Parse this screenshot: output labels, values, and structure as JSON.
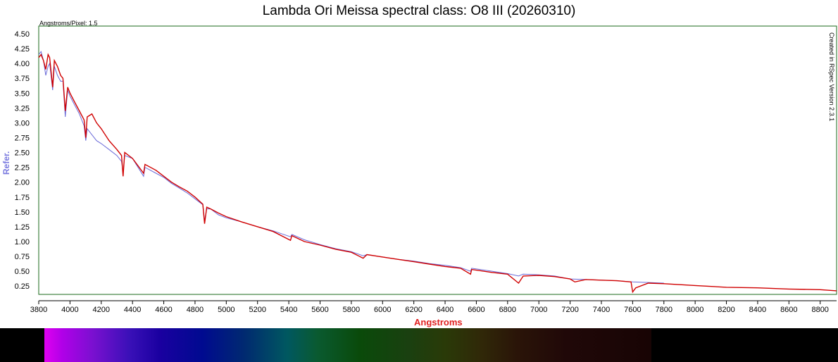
{
  "title": "Lambda Ori Meissa spectral class: O8 III (20260310)",
  "annotations": {
    "dispersion": "Angstroms/Pixel: 1.5",
    "software": "Created in RSpec Version 2.3.1"
  },
  "chart_data": {
    "type": "line",
    "title": "Lambda Ori Meissa spectral class: O8 III (20260310)",
    "xlabel": "Angstroms",
    "ylabel": "Refer.",
    "xlim": [
      3800,
      8905
    ],
    "ylim": [
      0.11,
      4.63
    ],
    "xticks": [
      3800,
      4000,
      4200,
      4400,
      4600,
      4800,
      5000,
      5200,
      5400,
      5600,
      5800,
      6000,
      6200,
      6400,
      6600,
      6800,
      7000,
      7200,
      7400,
      7600,
      7800,
      8000,
      8200,
      8400,
      8600,
      8800
    ],
    "yticks": [
      "0.25",
      "0.50",
      "0.75",
      "1.00",
      "1.25",
      "1.50",
      "1.75",
      "2.00",
      "2.25",
      "2.50",
      "2.75",
      "3.00",
      "3.25",
      "3.50",
      "3.75",
      "4.00",
      "4.25",
      "4.50"
    ],
    "grid": false,
    "colors": {
      "frame": "#1a6a1a",
      "reference": "#6a6ad8",
      "observed": "#d00000",
      "xlabel": "#e02020",
      "ylabel": "#7a7adf"
    },
    "series": [
      {
        "name": "reference",
        "color": "#6a6ad8",
        "x": [
          3800,
          3815,
          3830,
          3845,
          3860,
          3870,
          3889,
          3900,
          3920,
          3940,
          3955,
          3970,
          3985,
          4000,
          4030,
          4060,
          4090,
          4101,
          4110,
          4140,
          4170,
          4200,
          4250,
          4300,
          4330,
          4340,
          4350,
          4400,
          4471,
          4480,
          4550,
          4600,
          4650,
          4700,
          4750,
          4800,
          4850,
          4861,
          4875,
          4900,
          4950,
          5000,
          5100,
          5200,
          5300,
          5411,
          5420,
          5500,
          5600,
          5700,
          5800,
          5876,
          5900,
          6000,
          6100,
          6200,
          6300,
          6400,
          6500,
          6563,
          6570,
          6700,
          6800,
          6870,
          6900,
          7000,
          7100,
          7200,
          7300,
          7400,
          7500,
          7600,
          7700,
          7800
        ],
        "y": [
          4.15,
          4.2,
          4.05,
          3.8,
          3.95,
          4.0,
          3.55,
          3.95,
          3.8,
          3.7,
          3.7,
          3.1,
          3.55,
          3.45,
          3.3,
          3.15,
          2.95,
          2.7,
          2.9,
          2.8,
          2.7,
          2.65,
          2.55,
          2.45,
          2.35,
          2.15,
          2.45,
          2.4,
          2.1,
          2.25,
          2.15,
          2.08,
          1.98,
          1.9,
          1.82,
          1.72,
          1.62,
          1.35,
          1.55,
          1.55,
          1.45,
          1.4,
          1.33,
          1.25,
          1.18,
          1.08,
          1.12,
          1.03,
          0.95,
          0.88,
          0.83,
          0.76,
          0.78,
          0.74,
          0.7,
          0.67,
          0.63,
          0.6,
          0.56,
          0.5,
          0.55,
          0.5,
          0.46,
          0.42,
          0.45,
          0.44,
          0.42,
          0.37,
          0.36,
          0.35,
          0.34,
          0.32,
          0.31,
          0.3
        ]
      },
      {
        "name": "observed",
        "color": "#d00000",
        "x": [
          3800,
          3815,
          3830,
          3845,
          3860,
          3870,
          3889,
          3900,
          3920,
          3940,
          3955,
          3970,
          3985,
          4000,
          4030,
          4060,
          4090,
          4101,
          4110,
          4140,
          4170,
          4200,
          4250,
          4300,
          4330,
          4340,
          4350,
          4400,
          4471,
          4480,
          4550,
          4600,
          4650,
          4700,
          4750,
          4800,
          4850,
          4861,
          4875,
          4900,
          4950,
          5000,
          5100,
          5200,
          5300,
          5411,
          5420,
          5500,
          5600,
          5700,
          5800,
          5876,
          5900,
          6000,
          6100,
          6200,
          6300,
          6400,
          6500,
          6563,
          6570,
          6700,
          6800,
          6870,
          6900,
          7000,
          7100,
          7200,
          7230,
          7300,
          7400,
          7500,
          7590,
          7600,
          7620,
          7700,
          7800,
          8000,
          8200,
          8400,
          8600,
          8800,
          8905
        ],
        "y": [
          4.1,
          4.15,
          4.05,
          3.9,
          4.15,
          4.1,
          3.6,
          4.05,
          3.95,
          3.8,
          3.75,
          3.2,
          3.6,
          3.5,
          3.35,
          3.2,
          3.05,
          2.75,
          3.1,
          3.15,
          3.0,
          2.9,
          2.7,
          2.55,
          2.45,
          2.1,
          2.5,
          2.4,
          2.15,
          2.3,
          2.2,
          2.1,
          2.0,
          1.92,
          1.85,
          1.75,
          1.63,
          1.3,
          1.58,
          1.55,
          1.48,
          1.42,
          1.33,
          1.25,
          1.17,
          1.02,
          1.1,
          1.0,
          0.94,
          0.87,
          0.82,
          0.72,
          0.78,
          0.74,
          0.7,
          0.66,
          0.62,
          0.58,
          0.55,
          0.45,
          0.53,
          0.48,
          0.45,
          0.3,
          0.42,
          0.43,
          0.41,
          0.37,
          0.32,
          0.36,
          0.35,
          0.34,
          0.32,
          0.15,
          0.22,
          0.3,
          0.29,
          0.26,
          0.23,
          0.22,
          0.2,
          0.19,
          0.17
        ]
      }
    ]
  }
}
